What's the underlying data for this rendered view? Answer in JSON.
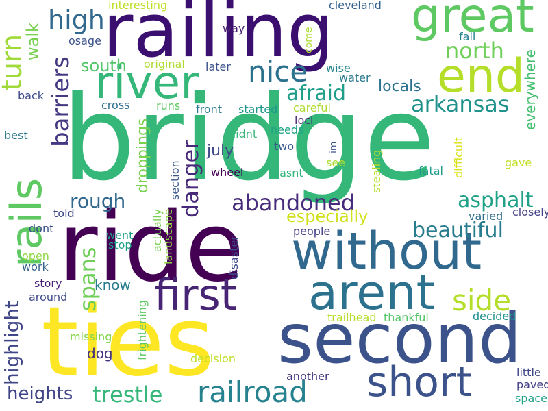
{
  "words": [
    {
      "text": "bridge",
      "color": "#35b779"
    },
    {
      "text": "ride",
      "color": "#440154"
    },
    {
      "text": "ties",
      "color": "#fde725"
    },
    {
      "text": "railing",
      "color": "#3b0f70"
    },
    {
      "text": "second",
      "color": "#3b528b"
    },
    {
      "text": "without",
      "color": "#31688e"
    },
    {
      "text": "arent",
      "color": "#2c728e"
    },
    {
      "text": "first",
      "color": "#482475"
    },
    {
      "text": "short",
      "color": "#3b528b"
    },
    {
      "text": "great",
      "color": "#5ec962"
    },
    {
      "text": "end",
      "color": "#b5de2b"
    },
    {
      "text": "river",
      "color": "#35b779"
    },
    {
      "text": "rails",
      "color": "#5ec962"
    },
    {
      "text": "railroad",
      "color": "#26828e"
    },
    {
      "text": "nice",
      "color": "#2c728e"
    },
    {
      "text": "abandoned",
      "color": "#472d7b"
    },
    {
      "text": "side",
      "color": "#b5de2b"
    },
    {
      "text": "turn",
      "color": "#a0da39"
    },
    {
      "text": "high",
      "color": "#31688e"
    },
    {
      "text": "north",
      "color": "#6ece58"
    },
    {
      "text": "arkansas",
      "color": "#21918c"
    },
    {
      "text": "afraid",
      "color": "#1f9e89"
    },
    {
      "text": "barriers",
      "color": "#443983"
    },
    {
      "text": "danger",
      "color": "#482878"
    },
    {
      "text": "trestle",
      "color": "#35b779"
    },
    {
      "text": "heights",
      "color": "#414487"
    },
    {
      "text": "spans",
      "color": "#6ece58"
    },
    {
      "text": "beautiful",
      "color": "#287c8e"
    },
    {
      "text": "asphalt",
      "color": "#1fa188"
    },
    {
      "text": "rough",
      "color": "#31688e"
    },
    {
      "text": "highlight",
      "color": "#404688"
    },
    {
      "text": "especially",
      "color": "#d0e11c"
    },
    {
      "text": "walk",
      "color": "#7ad151"
    },
    {
      "text": "south",
      "color": "#52c569"
    },
    {
      "text": "locals",
      "color": "#2c728e"
    },
    {
      "text": "july",
      "color": "#3e4989"
    },
    {
      "text": "droppings",
      "color": "#7ad151"
    },
    {
      "text": "everywhere",
      "color": "#44bf70"
    },
    {
      "text": "know",
      "color": "#287c8e"
    },
    {
      "text": "dog",
      "color": "#46327e"
    },
    {
      "text": "wheel",
      "color": "#440154"
    },
    {
      "text": "cleveland",
      "color": "#33638d"
    },
    {
      "text": "interesting",
      "color": "#bddf26"
    },
    {
      "text": "way",
      "color": "#481f70"
    },
    {
      "text": "osage",
      "color": "#3b528b"
    },
    {
      "text": "come",
      "color": "#addc30"
    },
    {
      "text": "fall",
      "color": "#26828e"
    },
    {
      "text": "original",
      "color": "#addc30"
    },
    {
      "text": "later",
      "color": "#3b528b"
    },
    {
      "text": "wise",
      "color": "#25848e"
    },
    {
      "text": "water",
      "color": "#29798e"
    },
    {
      "text": "back",
      "color": "#3e4989"
    },
    {
      "text": "cross",
      "color": "#2d708e"
    },
    {
      "text": "runs",
      "color": "#5ec962"
    },
    {
      "text": "front",
      "color": "#2a788e"
    },
    {
      "text": "started",
      "color": "#1f988b"
    },
    {
      "text": "careful",
      "color": "#addc30"
    },
    {
      "text": "locl",
      "color": "#482576"
    },
    {
      "text": "needs",
      "color": "#20a486"
    },
    {
      "text": "best",
      "color": "#2a788e"
    },
    {
      "text": "didnt",
      "color": "#35b779"
    },
    {
      "text": "two",
      "color": "#38598c"
    },
    {
      "text": "im",
      "color": "#3b528b"
    },
    {
      "text": "stealing",
      "color": "#b5de2b"
    },
    {
      "text": "difficult",
      "color": "#d8e219"
    },
    {
      "text": "section",
      "color": "#38598c"
    },
    {
      "text": "see",
      "color": "#addc30"
    },
    {
      "text": "gave",
      "color": "#c2df23"
    },
    {
      "text": "fatal",
      "color": "#1f9a8a"
    },
    {
      "text": "wasnt",
      "color": "#31b57b"
    },
    {
      "text": "told",
      "color": "#3e4989"
    },
    {
      "text": "varied",
      "color": "#2e6e8e"
    },
    {
      "text": "closely",
      "color": "#424086"
    },
    {
      "text": "dont",
      "color": "#3b528b"
    },
    {
      "text": "went",
      "color": "#1f9e89"
    },
    {
      "text": "actually",
      "color": "#7ad151"
    },
    {
      "text": "landscape",
      "color": "#90d743"
    },
    {
      "text": "people",
      "color": "#433e85"
    },
    {
      "text": "stop",
      "color": "#1fa188"
    },
    {
      "text": "disaster",
      "color": "#3e4989"
    },
    {
      "text": "open",
      "color": "#8fd744"
    },
    {
      "text": "work",
      "color": "#34618d"
    },
    {
      "text": "story",
      "color": "#481f70"
    },
    {
      "text": "around",
      "color": "#3e4989"
    },
    {
      "text": "frightening",
      "color": "#5ec962"
    },
    {
      "text": "trailhead",
      "color": "#b5de2b"
    },
    {
      "text": "thankful",
      "color": "#54c568"
    },
    {
      "text": "decided",
      "color": "#21918c"
    },
    {
      "text": "missing",
      "color": "#84d44b"
    },
    {
      "text": "decision",
      "color": "#bddf26"
    },
    {
      "text": "another",
      "color": "#453781"
    },
    {
      "text": "little",
      "color": "#3f4788"
    },
    {
      "text": "paved",
      "color": "#424086"
    },
    {
      "text": "spaced",
      "color": "#1fa188"
    }
  ]
}
